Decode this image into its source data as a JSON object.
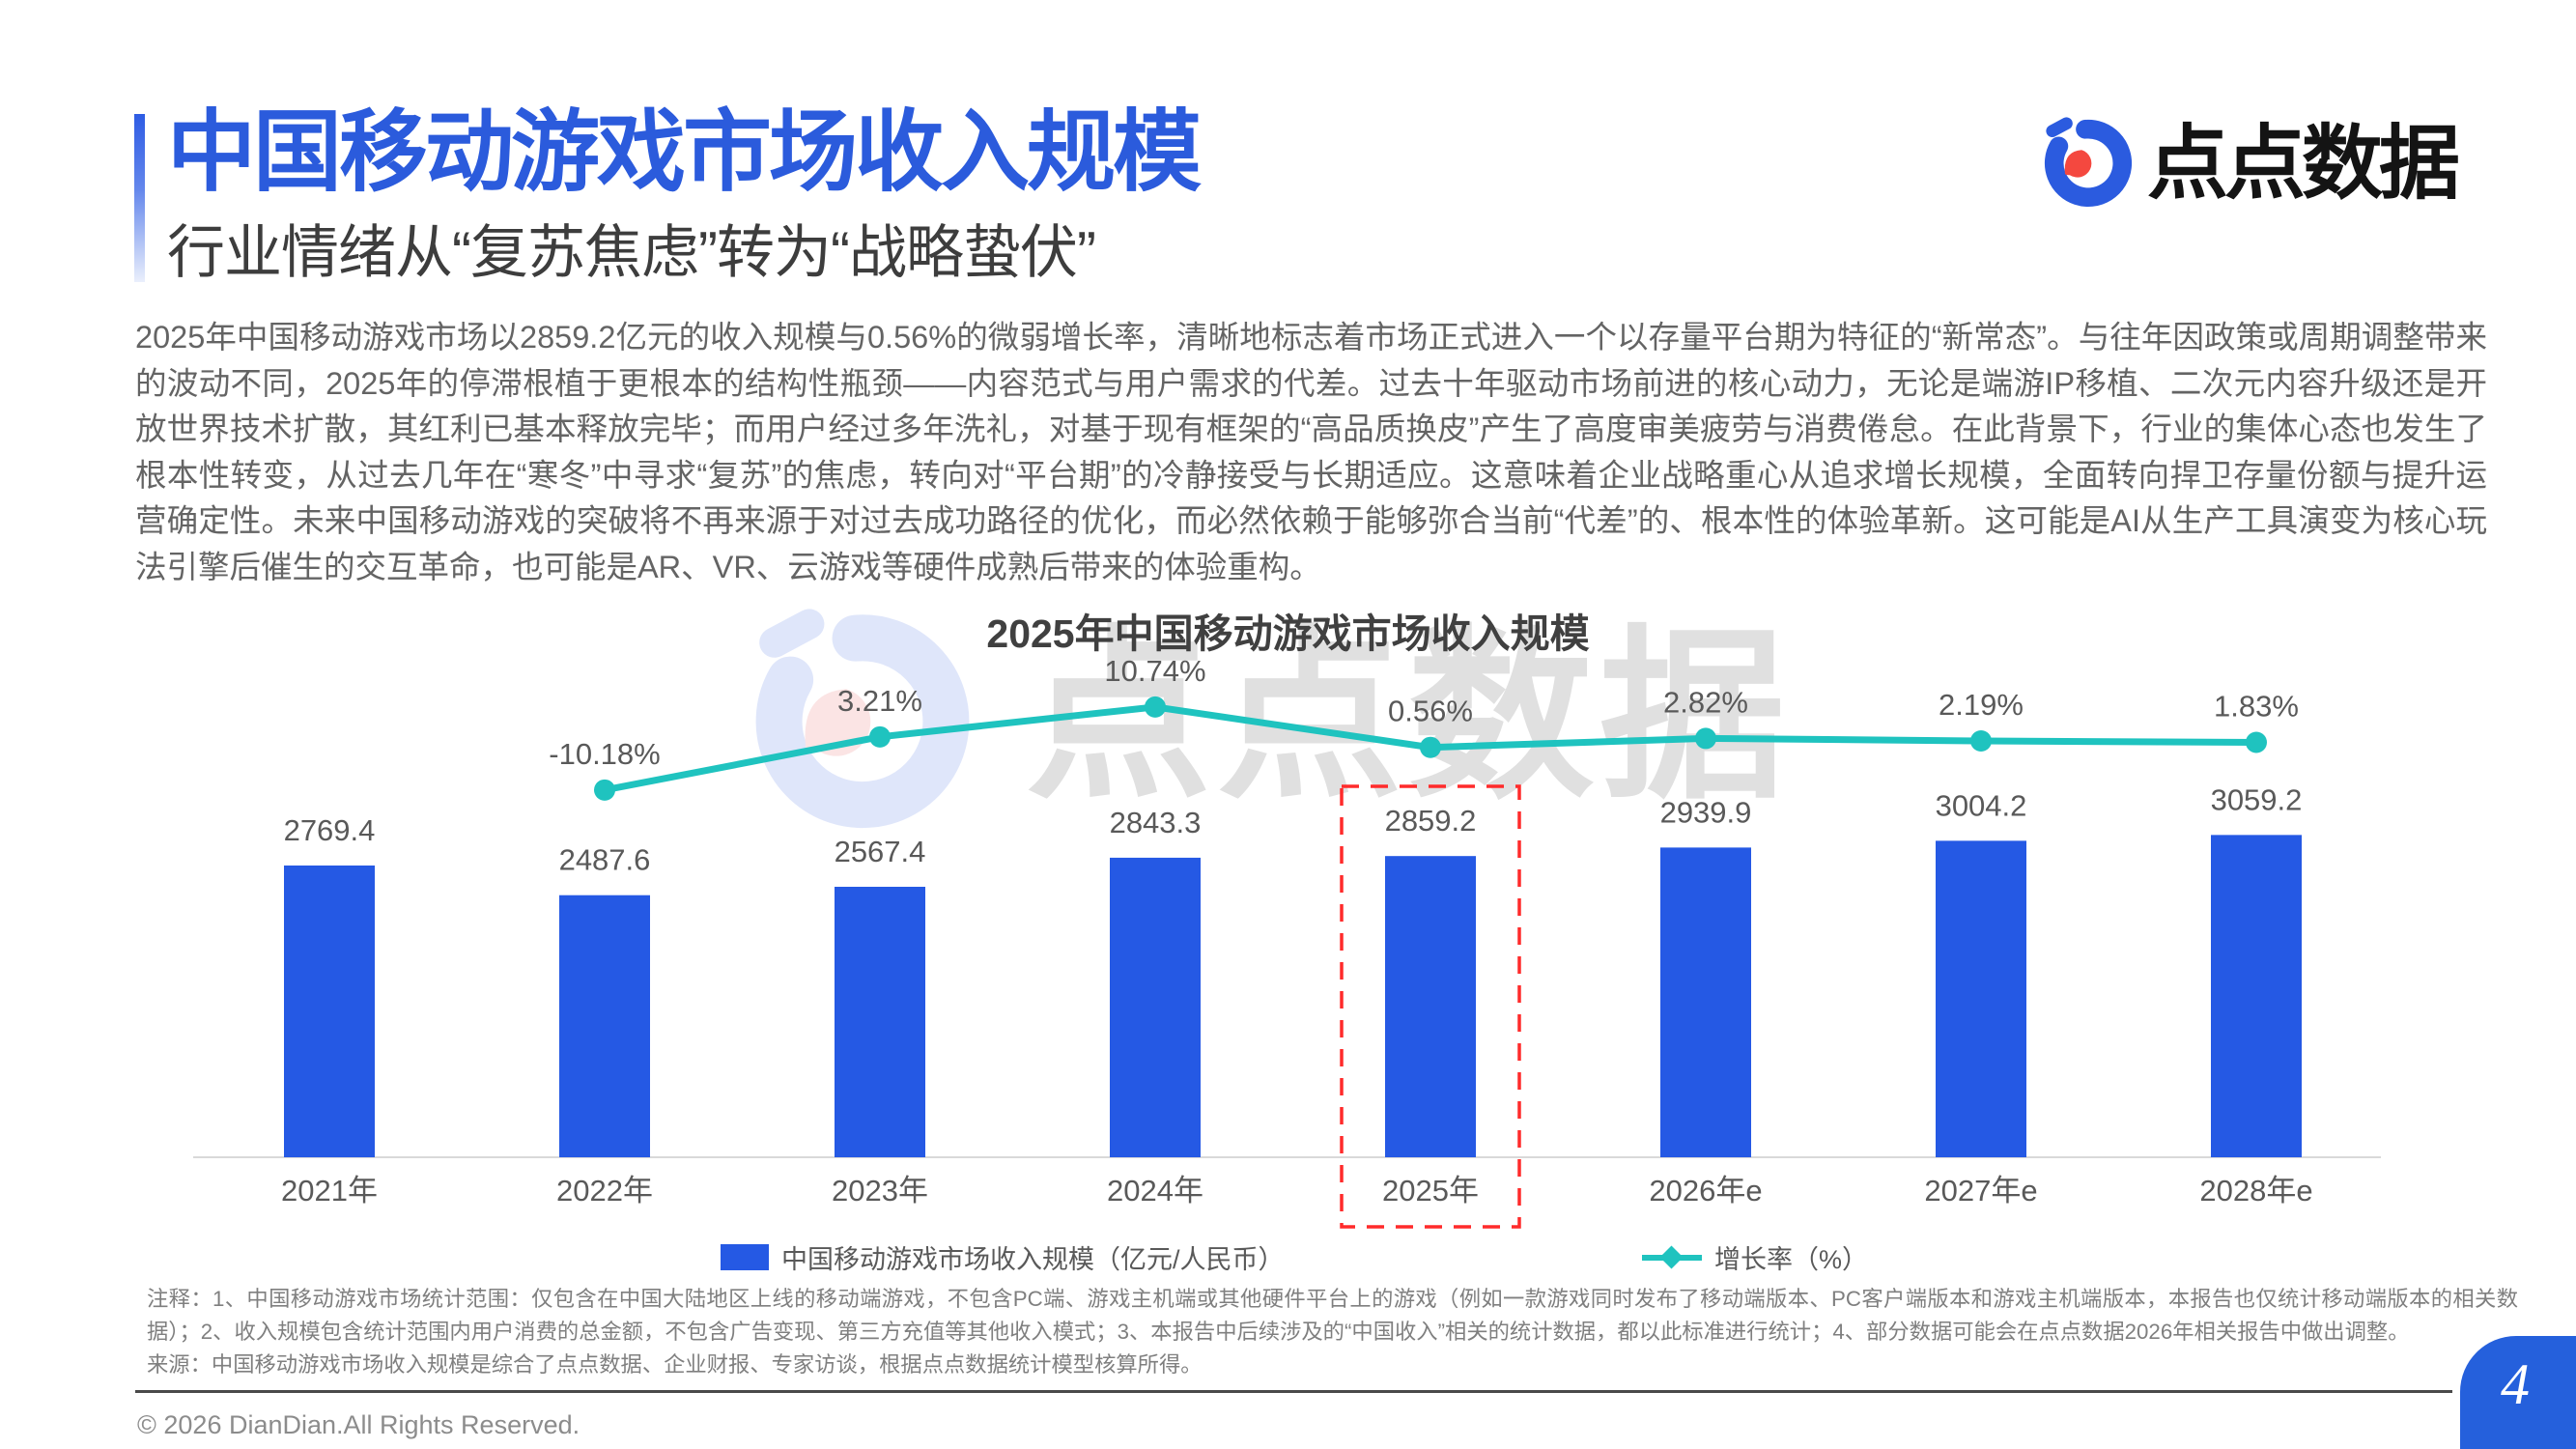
{
  "header": {
    "title": "中国移动游戏市场收入规模",
    "subtitle": "行业情绪从“复苏焦虑”转为“战略蛰伏”",
    "logo_text": "点点数据"
  },
  "intro": "2025年中国移动游戏市场以2859.2亿元的收入规模与0.56%的微弱增长率，清晰地标志着市场正式进入一个以存量平台期为特征的“新常态”。与往年因政策或周期调整带来的波动不同，2025年的停滞根植于更根本的结构性瓶颈——内容范式与用户需求的代差。过去十年驱动市场前进的核心动力，无论是端游IP移植、二次元内容升级还是开放世界技术扩散，其红利已基本释放完毕；而用户经过多年洗礼，对基于现有框架的“高品质换皮”产生了高度审美疲劳与消费倦怠。在此背景下，行业的集体心态也发生了根本性转变，从过去几年在“寒冬”中寻求“复苏”的焦虑，转向对“平台期”的冷静接受与长期适应。这意味着企业战略重心从追求增长规模，全面转向捍卫存量份额与提升运营确定性。未来中国移动游戏的突破将不再来源于对过去成功路径的优化，而必然依赖于能够弥合当前“代差”的、根本性的体验革新。这可能是AI从生产工具演变为核心玩法引擎后催生的交互革命，也可能是AR、VR、云游戏等硬件成熟后带来的体验重构。",
  "chart_data": {
    "type": "bar+line",
    "title": "2025年中国移动游戏市场收入规模",
    "categories": [
      "2021年",
      "2022年",
      "2023年",
      "2024年",
      "2025年",
      "2026年e",
      "2027年e",
      "2028年e"
    ],
    "series": [
      {
        "name": "中国移动游戏市场收入规模（亿元/人民币）",
        "type": "bar",
        "values": [
          2769.4,
          2487.6,
          2567.4,
          2843.3,
          2859.2,
          2939.9,
          3004.2,
          3059.2
        ]
      },
      {
        "name": "增长率（%）",
        "type": "line",
        "values": [
          null,
          -10.18,
          3.21,
          10.74,
          0.56,
          2.82,
          2.19,
          1.83
        ]
      }
    ],
    "highlight_category": "2025年",
    "bar_color": "#2559E4",
    "line_color": "#1FC3BF",
    "highlight_color": "#FF2B2B",
    "legend_position": "bottom"
  },
  "legend": {
    "bar_label": "中国移动游戏市场收入规模（亿元/人民币）",
    "line_label": "增长率（%）"
  },
  "notes": {
    "annotation": "注释：1、中国移动游戏市场统计范围：仅包含在中国大陆地区上线的移动端游戏，不包含PC端、游戏主机端或其他硬件平台上的游戏（例如一款游戏同时发布了移动端版本、PC客户端版本和游戏主机端版本，本报告也仅统计移动端版本的相关数据）；2、收入规模包含统计范围内用户消费的总金额，不包含广告变现、第三方充值等其他收入模式；3、本报告中后续涉及的“中国收入”相关的统计数据，都以此标准进行统计；4、部分数据可能会在点点数据2026年相关报告中做出调整。",
    "source": "来源：中国移动游戏市场收入规模是综合了点点数据、企业财报、专家访谈，根据点点数据统计模型核算所得。"
  },
  "footer": {
    "copyright": "© 2026 DianDian.All Rights Reserved.",
    "page_number": "4"
  }
}
